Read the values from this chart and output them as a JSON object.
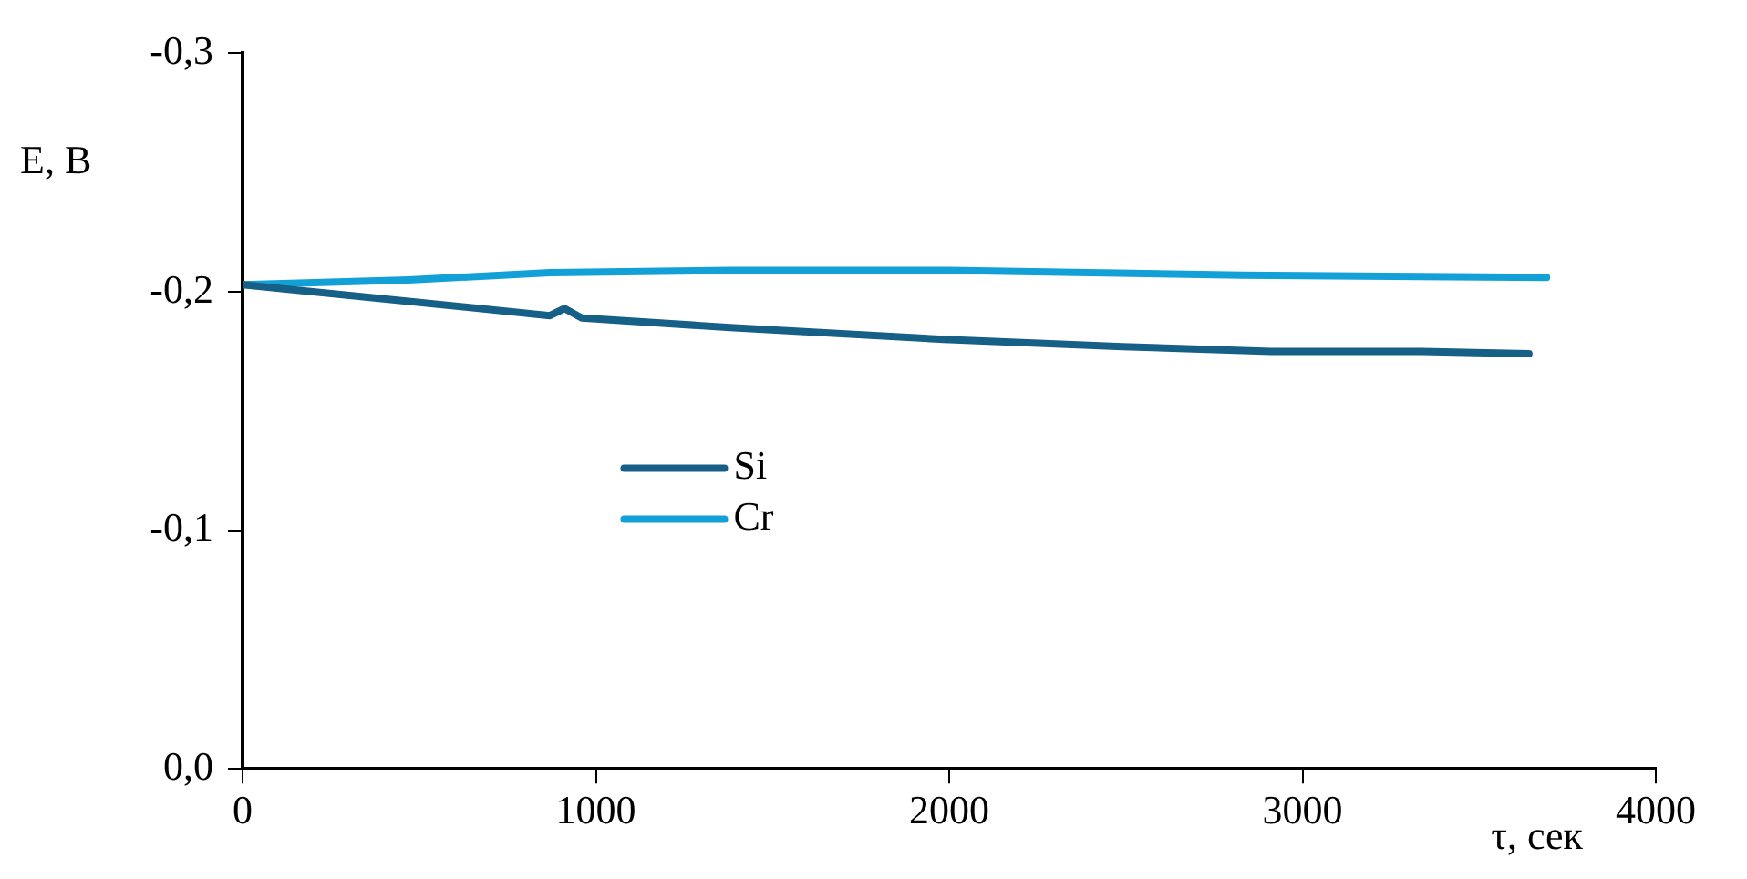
{
  "chart_data": {
    "type": "line",
    "xlabel": "τ, сек",
    "ylabel": "E, В",
    "xlim": [
      0,
      4000
    ],
    "xticks": [
      0,
      1000,
      2000,
      3000,
      4000
    ],
    "ylim": [
      0,
      -0.3
    ],
    "yticks": [
      {
        "value": 0,
        "label": "0,0"
      },
      {
        "value": -0.1,
        "label": "-0,1"
      },
      {
        "value": -0.2,
        "label": "-0,2"
      },
      {
        "value": -0.3,
        "label": "-0,3"
      }
    ],
    "grid": false,
    "legend": "center left",
    "marker": "none",
    "line_style": "solid",
    "series": [
      {
        "name": "Si",
        "color": "#165f86",
        "x": [
          0,
          470,
          870,
          911,
          960,
          1380,
          1985,
          2491,
          2911,
          3337,
          3641
        ],
        "values": [
          -0.203,
          -0.196,
          -0.19,
          -0.193,
          -0.189,
          -0.185,
          -0.18,
          -0.177,
          -0.175,
          -0.175,
          -0.174
        ]
      },
      {
        "name": "Cr",
        "color": "#12a0d7",
        "x": [
          0,
          470,
          870,
          1380,
          2000,
          2830,
          3691
        ],
        "values": [
          -0.203,
          -0.205,
          -0.208,
          -0.209,
          -0.209,
          -0.207,
          -0.206
        ]
      }
    ]
  }
}
